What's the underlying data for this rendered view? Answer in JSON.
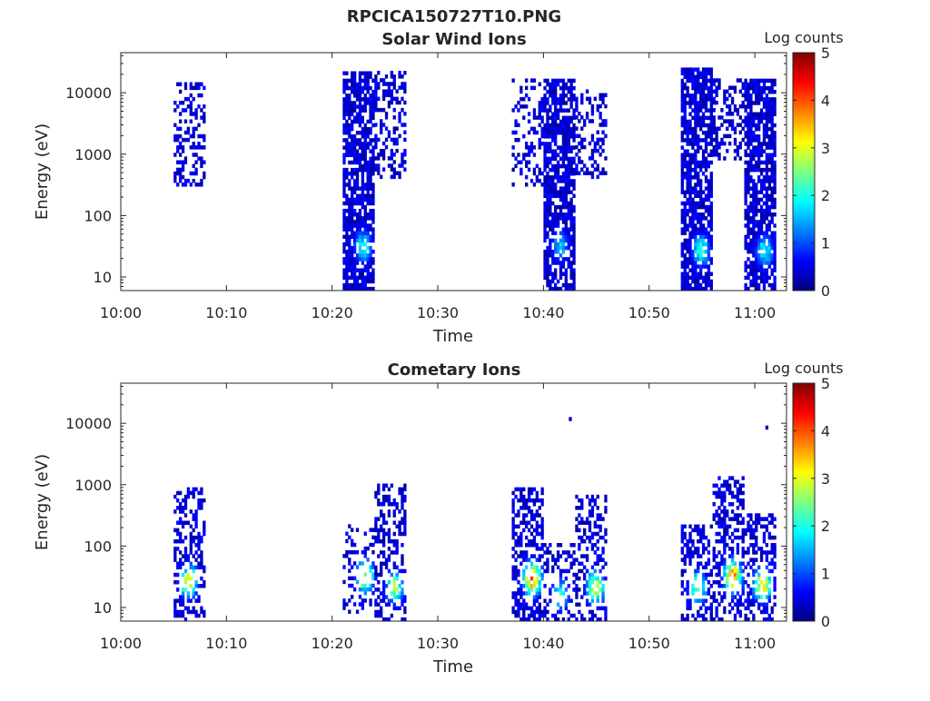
{
  "figure": {
    "title": "RPCICA150727T10.PNG"
  },
  "colormap": "jet",
  "colorbar": {
    "label": "Log counts",
    "range": [
      0,
      5
    ],
    "ticks": [
      "0",
      "1",
      "2",
      "3",
      "4",
      "5"
    ]
  },
  "chart_data": [
    {
      "type": "heatmap",
      "title": "Solar Wind Ions",
      "xlabel": "Time",
      "ylabel": "Energy (eV)",
      "yscale": "log",
      "ylim": [
        6,
        45000
      ],
      "xlim": [
        "10:00",
        "11:03"
      ],
      "xticks": [
        "10:00",
        "10:10",
        "10:20",
        "10:30",
        "10:40",
        "10:50",
        "11:00"
      ],
      "yticks": [
        "10",
        "100",
        "1000",
        "10000"
      ],
      "cbar_label": "Log counts",
      "clim": [
        0,
        5
      ],
      "bursts": [
        {
          "start": "10:05",
          "end": "10:08",
          "emin": 300,
          "emax": 14000,
          "density": 0.35,
          "core": null
        },
        {
          "start": "10:21",
          "end": "10:24",
          "emin": 6,
          "emax": 20000,
          "density": 0.75,
          "core": {
            "time": "10:22.8",
            "energy": 30,
            "peak": 2.0
          }
        },
        {
          "start": "10:24",
          "end": "10:27",
          "emin": 400,
          "emax": 20000,
          "density": 0.4,
          "core": null
        },
        {
          "start": "10:37",
          "end": "10:40",
          "emin": 300,
          "emax": 15000,
          "density": 0.3,
          "core": null
        },
        {
          "start": "10:40",
          "end": "10:43",
          "emin": 6,
          "emax": 15000,
          "density": 0.75,
          "core": {
            "time": "10:41.5",
            "energy": 30,
            "peak": 1.6
          }
        },
        {
          "start": "10:43",
          "end": "10:46",
          "emin": 400,
          "emax": 10000,
          "density": 0.35,
          "core": null
        },
        {
          "start": "10:53",
          "end": "10:56",
          "emin": 6,
          "emax": 25000,
          "density": 0.75,
          "core": {
            "time": "10:54.8",
            "energy": 25,
            "peak": 2.2
          }
        },
        {
          "start": "10:56",
          "end": "10:59",
          "emin": 800,
          "emax": 15000,
          "density": 0.35,
          "core": null
        },
        {
          "start": "10:59",
          "end": "11:02",
          "emin": 6,
          "emax": 15000,
          "density": 0.8,
          "core": {
            "time": "11:00.8",
            "energy": 25,
            "peak": 2.0
          }
        }
      ]
    },
    {
      "type": "heatmap",
      "title": "Cometary Ions",
      "xlabel": "Time",
      "ylabel": "Energy (eV)",
      "yscale": "log",
      "ylim": [
        6,
        45000
      ],
      "xlim": [
        "10:00",
        "11:03"
      ],
      "xticks": [
        "10:00",
        "10:10",
        "10:20",
        "10:30",
        "10:40",
        "10:50",
        "11:00"
      ],
      "yticks": [
        "10",
        "100",
        "1000",
        "10000"
      ],
      "cbar_label": "Log counts",
      "clim": [
        0,
        5
      ],
      "bursts": [
        {
          "start": "10:05",
          "end": "10:08",
          "emin": 6,
          "emax": 800,
          "density": 0.45,
          "core": {
            "time": "10:06.3",
            "energy": 25,
            "peak": 3.0
          }
        },
        {
          "start": "10:21",
          "end": "10:24",
          "emin": 8,
          "emax": 200,
          "density": 0.3,
          "core": {
            "time": "10:23",
            "energy": 30,
            "peak": 3.0
          }
        },
        {
          "start": "10:24",
          "end": "10:27",
          "emin": 6,
          "emax": 1000,
          "density": 0.45,
          "core": {
            "time": "10:25.8",
            "energy": 20,
            "peak": 2.7
          }
        },
        {
          "start": "10:37",
          "end": "10:40",
          "emin": 6,
          "emax": 900,
          "density": 0.5,
          "core": {
            "time": "10:38.8",
            "energy": 28,
            "peak": 3.8
          }
        },
        {
          "start": "10:40",
          "end": "10:43",
          "emin": 6,
          "emax": 100,
          "density": 0.35,
          "core": {
            "time": "10:41.5",
            "energy": 15,
            "peak": 2.0
          }
        },
        {
          "start": "10:43",
          "end": "10:46",
          "emin": 6,
          "emax": 600,
          "density": 0.45,
          "core": {
            "time": "10:44.8",
            "energy": 20,
            "peak": 3.0
          }
        },
        {
          "start": "10:53",
          "end": "10:56",
          "emin": 6,
          "emax": 200,
          "density": 0.45,
          "core": {
            "time": "10:54.5",
            "energy": 20,
            "peak": 2.6
          }
        },
        {
          "start": "10:56",
          "end": "10:59",
          "emin": 6,
          "emax": 1200,
          "density": 0.45,
          "core": {
            "time": "10:57.8",
            "energy": 30,
            "peak": 3.7
          }
        },
        {
          "start": "10:59",
          "end": "11:02",
          "emin": 6,
          "emax": 300,
          "density": 0.45,
          "core": {
            "time": "11:00.6",
            "energy": 22,
            "peak": 3.3
          }
        }
      ],
      "isolated_points": [
        {
          "time": "10:42.4",
          "energy": 11000,
          "value": 0.3
        },
        {
          "time": "11:01",
          "energy": 8000,
          "value": 0.3
        }
      ]
    }
  ]
}
